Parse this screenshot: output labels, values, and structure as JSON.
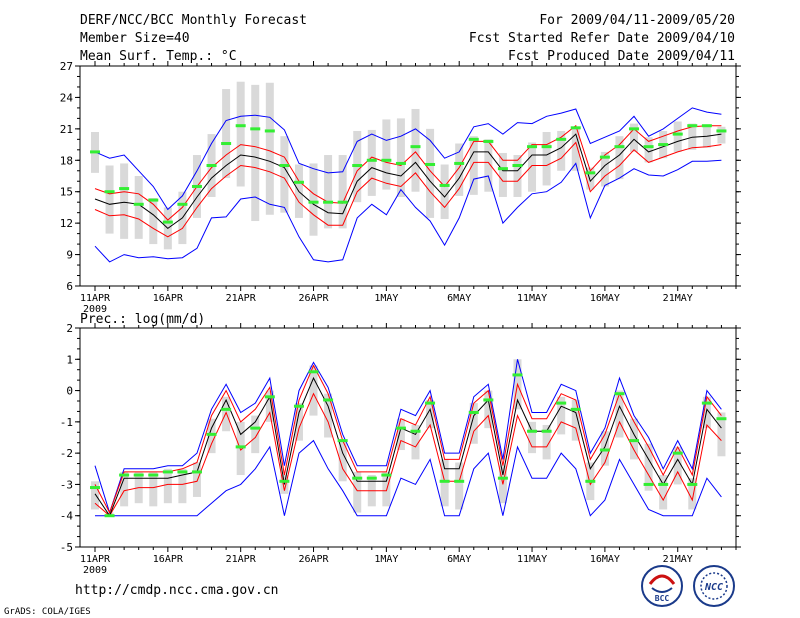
{
  "header": {
    "title": "DERF/NCC/BCC Monthly Forecast",
    "member_size": "Member Size=40",
    "variable": "Mean Surf. Temp.: °C",
    "period": "For 2009/04/11-2009/05/20",
    "started": "Fcst Started Refer Date 2009/04/10",
    "produced": "Fcst Produced Date 2009/04/11"
  },
  "footer": {
    "url": "http://cmdp.ncc.cma.gov.cn",
    "credit": "GrADS: COLA/IGES",
    "logo_bcc": "BCC",
    "logo_ncc": "NCC"
  },
  "colors": {
    "mean": "#000000",
    "spread": "#ff0000",
    "extreme": "#0000ff",
    "box": "#d9d9d9",
    "obs": "#33ee33",
    "frame": "#000000"
  },
  "chart_data": [
    {
      "type": "line",
      "title": "Mean Surf. Temp.: °C",
      "x_tick_labels": [
        "11APR",
        "16APR",
        "21APR",
        "26APR",
        "1MAY",
        "6MAY",
        "11MAY",
        "16MAY",
        "21MAY"
      ],
      "x_year_label": "2009",
      "ylim": [
        6,
        27
      ],
      "yticks": [
        6,
        9,
        12,
        15,
        18,
        21,
        24,
        27
      ],
      "series": [
        {
          "name": "ensemble mean",
          "values": [
            14.3,
            13.8,
            14.0,
            13.8,
            12.8,
            11.5,
            12.5,
            14.5,
            16.3,
            17.5,
            18.5,
            18.3,
            17.9,
            17.3,
            15.0,
            13.8,
            13.0,
            12.9,
            16.0,
            17.3,
            16.8,
            16.5,
            17.8,
            16.0,
            14.5,
            16.3,
            18.8,
            18.8,
            17.0,
            17.0,
            18.5,
            18.5,
            19.2,
            20.5,
            16.0,
            17.5,
            18.5,
            20.0,
            18.8,
            19.3,
            19.8,
            20.2,
            20.3,
            20.5
          ]
        },
        {
          "name": "mean + spread",
          "values": [
            15.3,
            14.8,
            15.0,
            14.8,
            13.8,
            12.3,
            13.5,
            15.5,
            17.3,
            18.5,
            19.5,
            19.3,
            18.9,
            18.3,
            16.0,
            14.8,
            14.0,
            13.9,
            17.0,
            18.3,
            17.8,
            17.5,
            18.8,
            17.0,
            15.5,
            17.3,
            19.8,
            19.8,
            18.0,
            18.0,
            19.5,
            19.5,
            20.2,
            21.3,
            17.0,
            18.5,
            19.5,
            21.0,
            19.8,
            20.3,
            20.8,
            21.2,
            21.3,
            21.3
          ]
        },
        {
          "name": "mean - spread",
          "values": [
            13.3,
            12.7,
            12.8,
            12.4,
            11.5,
            10.7,
            11.5,
            13.5,
            15.3,
            16.5,
            17.5,
            17.3,
            16.9,
            16.3,
            14.0,
            12.8,
            11.8,
            11.8,
            15.0,
            16.3,
            15.8,
            15.5,
            16.8,
            15.0,
            13.5,
            15.3,
            17.8,
            17.8,
            16.0,
            16.0,
            17.5,
            17.5,
            18.2,
            19.7,
            15.0,
            16.5,
            17.5,
            19.0,
            17.8,
            18.3,
            18.8,
            19.2,
            19.3,
            19.5
          ]
        },
        {
          "name": "ensemble max",
          "values": [
            18.8,
            18.2,
            18.5,
            17.0,
            15.5,
            13.3,
            14.6,
            17.0,
            19.6,
            21.8,
            22.2,
            22.3,
            22.1,
            20.9,
            17.7,
            17.2,
            16.8,
            16.9,
            19.8,
            20.5,
            19.9,
            20.3,
            21.0,
            19.9,
            18.2,
            18.8,
            21.2,
            21.5,
            20.5,
            21.6,
            21.5,
            22.2,
            22.5,
            22.9,
            19.6,
            20.2,
            20.8,
            22.2,
            20.3,
            21.0,
            22.0,
            23.0,
            22.6,
            22.4
          ]
        },
        {
          "name": "ensemble min",
          "values": [
            9.8,
            8.3,
            9.0,
            8.7,
            8.8,
            8.6,
            8.7,
            9.6,
            12.5,
            12.6,
            14.3,
            14.5,
            13.8,
            13.5,
            10.7,
            8.5,
            8.3,
            8.5,
            12.5,
            13.8,
            12.8,
            15.2,
            13.5,
            12.2,
            9.9,
            12.5,
            16.2,
            16.5,
            12.0,
            13.5,
            14.8,
            15.0,
            15.9,
            17.7,
            12.5,
            15.6,
            16.3,
            17.2,
            16.6,
            16.5,
            17.1,
            17.9,
            17.9,
            18.0
          ]
        },
        {
          "name": "box upper",
          "values": [
            20.7,
            17.5,
            17.7,
            16.5,
            14.4,
            13.5,
            15.0,
            18.5,
            20.5,
            24.8,
            25.5,
            25.2,
            25.4,
            20.3,
            17.6,
            17.7,
            18.5,
            18.5,
            20.8,
            20.9,
            21.9,
            22.0,
            22.9,
            21.0,
            17.6,
            19.6,
            20.3,
            20.0,
            18.7,
            18.5,
            19.7,
            20.7,
            20.8,
            21.1,
            17.3,
            18.8,
            20.3,
            21.5,
            20.2,
            20.8,
            21.7,
            21.5,
            21.4,
            21.2
          ]
        },
        {
          "name": "box lower",
          "values": [
            16.8,
            11.0,
            10.5,
            10.5,
            10.0,
            9.5,
            10.0,
            12.5,
            14.5,
            16.3,
            15.5,
            12.2,
            12.8,
            13.0,
            12.5,
            10.8,
            11.5,
            11.5,
            14.0,
            14.6,
            15.2,
            14.5,
            15.0,
            12.5,
            12.4,
            14.6,
            14.7,
            15.0,
            14.5,
            14.5,
            15.0,
            15.6,
            17.0,
            17.0,
            15.2,
            15.5,
            16.2,
            18.8,
            17.8,
            18.2,
            18.8,
            19.0,
            19.2,
            19.6
          ]
        },
        {
          "name": "observed",
          "values": [
            18.8,
            15.0,
            15.3,
            13.8,
            14.2,
            12.1,
            13.8,
            15.5,
            17.5,
            19.6,
            21.3,
            21.0,
            20.8,
            17.5,
            15.9,
            14.0,
            14.0,
            14.0,
            17.5,
            18.0,
            18.0,
            17.7,
            19.3,
            17.6,
            15.6,
            17.7,
            20.0,
            19.8,
            17.2,
            17.5,
            19.3,
            19.3,
            20.0,
            21.1,
            16.8,
            18.3,
            19.3,
            21.0,
            19.3,
            19.5,
            20.5,
            21.3,
            21.3,
            20.8
          ]
        }
      ]
    },
    {
      "type": "line",
      "title": "Prec.: log(mm/d)",
      "x_tick_labels": [
        "11APR",
        "16APR",
        "21APR",
        "26APR",
        "1MAY",
        "6MAY",
        "11MAY",
        "16MAY",
        "21MAY"
      ],
      "x_year_label": "2009",
      "ylim": [
        -5,
        2
      ],
      "yticks": [
        -5,
        -4,
        -3,
        -2,
        -1,
        0,
        1,
        2
      ],
      "series": [
        {
          "name": "ensemble mean",
          "values": [
            -3.3,
            -4.0,
            -2.8,
            -2.8,
            -2.8,
            -2.8,
            -2.7,
            -2.6,
            -1.2,
            -0.3,
            -1.4,
            -1.0,
            -0.2,
            -3.0,
            -0.7,
            0.4,
            -0.5,
            -2.0,
            -2.9,
            -2.9,
            -2.9,
            -1.2,
            -1.4,
            -0.6,
            -2.5,
            -2.5,
            -0.8,
            -0.3,
            -2.7,
            -0.3,
            -1.3,
            -1.3,
            -0.5,
            -0.7,
            -2.5,
            -1.8,
            -0.5,
            -1.4,
            -2.2,
            -3.0,
            -2.2,
            -3.0,
            -0.6,
            -1.2
          ]
        },
        {
          "name": "mean + spread",
          "values": [
            -3.0,
            -3.9,
            -2.6,
            -2.6,
            -2.6,
            -2.6,
            -2.5,
            -2.3,
            -0.8,
            0.0,
            -1.0,
            -0.6,
            0.1,
            -2.7,
            -0.3,
            0.8,
            -0.1,
            -1.6,
            -2.6,
            -2.6,
            -2.6,
            -0.9,
            -1.1,
            -0.2,
            -2.2,
            -2.2,
            -0.4,
            0.0,
            -2.4,
            0.2,
            -0.9,
            -0.9,
            -0.1,
            -0.3,
            -2.2,
            -1.4,
            -0.1,
            -1.0,
            -1.8,
            -2.7,
            -1.8,
            -2.7,
            -0.2,
            -0.8
          ]
        },
        {
          "name": "mean - spread",
          "values": [
            -3.6,
            -4.0,
            -3.2,
            -3.1,
            -3.1,
            -3.0,
            -3.0,
            -2.9,
            -1.7,
            -0.7,
            -1.9,
            -1.5,
            -0.7,
            -3.2,
            -1.2,
            -0.1,
            -1.0,
            -2.5,
            -3.2,
            -3.2,
            -3.2,
            -1.6,
            -1.8,
            -1.1,
            -2.9,
            -2.9,
            -1.3,
            -0.8,
            -3.0,
            -0.8,
            -1.8,
            -1.8,
            -1.0,
            -1.2,
            -3.0,
            -2.3,
            -1.0,
            -1.9,
            -2.7,
            -3.5,
            -2.6,
            -3.5,
            -1.1,
            -1.6
          ]
        },
        {
          "name": "ensemble max",
          "values": [
            -2.4,
            -3.9,
            -2.5,
            -2.5,
            -2.5,
            -2.4,
            -2.4,
            -2.0,
            -0.6,
            0.2,
            -0.7,
            -0.4,
            0.4,
            -2.4,
            0.0,
            0.9,
            0.1,
            -1.4,
            -2.4,
            -2.4,
            -2.4,
            -0.6,
            -0.8,
            0.0,
            -2.0,
            -2.0,
            -0.2,
            0.2,
            -2.2,
            1.0,
            -0.7,
            -0.7,
            0.2,
            0.0,
            -2.0,
            -1.2,
            0.4,
            -0.8,
            -1.5,
            -2.5,
            -1.6,
            -2.5,
            0.0,
            -0.6
          ]
        },
        {
          "name": "ensemble min",
          "values": [
            -4.0,
            -4.0,
            -4.0,
            -4.0,
            -4.0,
            -4.0,
            -4.0,
            -4.0,
            -3.6,
            -3.2,
            -3.0,
            -2.5,
            -1.8,
            -4.0,
            -2.0,
            -1.6,
            -2.5,
            -3.2,
            -4.0,
            -4.0,
            -4.0,
            -2.8,
            -3.0,
            -2.2,
            -4.0,
            -4.0,
            -2.5,
            -2.0,
            -4.0,
            -1.8,
            -2.8,
            -2.8,
            -2.0,
            -2.5,
            -4.0,
            -3.5,
            -2.2,
            -3.0,
            -3.8,
            -4.0,
            -4.0,
            -4.0,
            -2.8,
            -3.4
          ]
        },
        {
          "name": "box upper",
          "values": [
            -2.9,
            -3.9,
            -2.6,
            -2.6,
            -2.6,
            -2.5,
            -2.5,
            -2.3,
            -0.9,
            -0.2,
            -1.0,
            -0.8,
            0.0,
            -2.7,
            -0.4,
            0.8,
            -0.1,
            -1.6,
            -2.6,
            -2.7,
            -2.6,
            -0.9,
            -1.1,
            -0.3,
            -2.2,
            -2.3,
            -0.4,
            0.0,
            -2.4,
            1.0,
            -1.0,
            -1.1,
            -0.2,
            -0.3,
            -2.3,
            -1.3,
            0.0,
            -0.9,
            -1.7,
            -2.7,
            -1.8,
            -2.8,
            -0.2,
            -0.7
          ]
        },
        {
          "name": "box lower",
          "values": [
            -3.8,
            -4.0,
            -3.7,
            -3.6,
            -3.7,
            -3.6,
            -3.6,
            -3.4,
            -2.0,
            -1.3,
            -2.7,
            -2.0,
            -1.0,
            -3.3,
            -1.6,
            -0.8,
            -1.5,
            -2.9,
            -3.9,
            -3.7,
            -3.7,
            -1.9,
            -2.2,
            -1.2,
            -3.7,
            -3.8,
            -1.7,
            -1.2,
            -3.6,
            -0.6,
            -2.0,
            -2.2,
            -1.4,
            -1.6,
            -3.5,
            -2.4,
            -1.5,
            -2.2,
            -3.2,
            -3.8,
            -3.0,
            -3.8,
            -1.2,
            -2.1
          ]
        },
        {
          "name": "observed",
          "values": [
            -3.1,
            -4.0,
            -2.7,
            -2.7,
            -2.7,
            -2.6,
            -2.6,
            -2.6,
            -1.4,
            -0.6,
            -1.8,
            -1.2,
            -0.2,
            -2.9,
            -0.5,
            0.6,
            -0.3,
            -1.6,
            -2.8,
            -2.8,
            -2.7,
            -1.2,
            -1.3,
            -0.4,
            -2.9,
            -2.9,
            -0.7,
            -0.3,
            -2.8,
            0.5,
            -1.3,
            -1.3,
            -0.4,
            -0.6,
            -2.9,
            -1.9,
            -0.1,
            -1.6,
            -3.0,
            -3.0,
            -2.0,
            -3.0,
            -0.4,
            -0.9
          ]
        }
      ]
    }
  ]
}
